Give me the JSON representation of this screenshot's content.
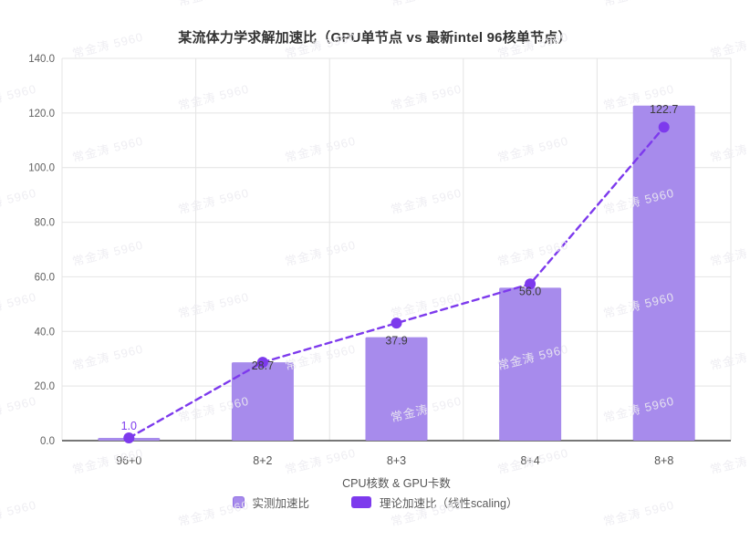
{
  "watermark": {
    "text": "常金涛 5960"
  },
  "chart_data": {
    "type": "bar",
    "title": "某流体力学求解加速比（GPU单节点 vs 最新intel 96核单节点）",
    "categories": [
      "96+0",
      "8+2",
      "8+3",
      "8+4",
      "8+8"
    ],
    "series": [
      {
        "name": "实测加速比",
        "type": "bar",
        "values": [
          1.0,
          28.7,
          37.9,
          56.0,
          122.7
        ],
        "data_labels": [
          "1.0",
          "28.7",
          "37.9",
          "56.0",
          "122.7"
        ],
        "color": "#a78bec"
      },
      {
        "name": "理论加速比（线性scaling）",
        "type": "line",
        "style": "dashed",
        "values": [
          1.0,
          28.7,
          43.05,
          57.4,
          114.8
        ],
        "color": "#7d3aed"
      }
    ],
    "xlabel": "CPU核数 & GPU卡数",
    "ylabel": "",
    "ylim": [
      0,
      140
    ],
    "ytick_step": 20,
    "ytick_labels": [
      "0.0",
      "20.0",
      "40.0",
      "60.0",
      "80.0",
      "100.0",
      "120.0",
      "140.0"
    ],
    "grid": true,
    "legend_position": "bottom",
    "label_colors": {
      "first": "#7d3aed",
      "default": "#3d3d3d"
    },
    "axis_colors": {
      "tick_text": "#606060",
      "x_tick_text": "#555555",
      "grid": "#e4e4e4",
      "baseline": "#4a4a4a"
    }
  }
}
